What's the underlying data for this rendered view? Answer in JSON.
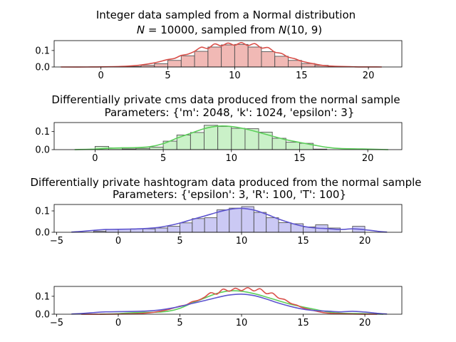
{
  "chart_data": [
    {
      "type": "bar",
      "title": "Integer data sampled from a Normal distribution",
      "subtitle": "N = 10000, sampled from N(10, 9)",
      "subtitle_parts": [
        "N",
        " = 10000, sampled from ",
        "N",
        "(10, 9)"
      ],
      "xlim": [
        -3.5,
        22.5
      ],
      "ylim": [
        0,
        0.16
      ],
      "xticks": [
        "0",
        "5",
        "10",
        "15",
        "20"
      ],
      "yticks": [
        "0.0",
        "0.1"
      ],
      "color": "#e88a84",
      "line_color": "#d9504a",
      "bins": [
        0,
        1,
        2,
        3,
        4,
        5,
        6,
        7,
        8,
        9,
        10,
        11,
        12,
        13,
        14,
        15,
        16,
        17,
        18,
        19
      ],
      "values": [
        0.0,
        0.001,
        0.003,
        0.01,
        0.02,
        0.04,
        0.068,
        0.095,
        0.121,
        0.134,
        0.137,
        0.121,
        0.093,
        0.065,
        0.04,
        0.021,
        0.01,
        0.004,
        0.001,
        0.0
      ],
      "kde_x": [
        -3,
        -1,
        1,
        2,
        3,
        4,
        5,
        5.5,
        6,
        6.5,
        7,
        7.5,
        8,
        8.5,
        9,
        9.5,
        10,
        10.5,
        11,
        11.5,
        12,
        12.5,
        13,
        13.5,
        14,
        14.5,
        15,
        16,
        17,
        19,
        21
      ],
      "kde_y": [
        0.0,
        0.0,
        0.002,
        0.005,
        0.012,
        0.025,
        0.045,
        0.052,
        0.07,
        0.078,
        0.095,
        0.12,
        0.112,
        0.14,
        0.128,
        0.145,
        0.132,
        0.148,
        0.13,
        0.142,
        0.115,
        0.118,
        0.09,
        0.082,
        0.06,
        0.05,
        0.035,
        0.018,
        0.006,
        0.001,
        0.0
      ]
    },
    {
      "type": "bar",
      "title": "Differentially private cms data produced from the normal sample",
      "subtitle": "Parameters: {'m': 2048, 'k': 1024, 'epsilon': 3}",
      "xlim": [
        -3,
        22.5
      ],
      "ylim": [
        0,
        0.15
      ],
      "xticks": [
        "0",
        "5",
        "10",
        "15",
        "20"
      ],
      "yticks": [
        "0.0",
        "0.1"
      ],
      "color": "#a6e8a4",
      "line_color": "#5ccf5a",
      "bins": [
        0,
        1,
        2,
        3,
        4,
        5,
        6,
        7,
        8,
        9,
        10,
        11,
        12,
        13,
        14,
        15,
        16
      ],
      "values": [
        0.018,
        0.01,
        0.004,
        0.007,
        0.014,
        0.047,
        0.081,
        0.095,
        0.135,
        0.128,
        0.118,
        0.116,
        0.097,
        0.063,
        0.041,
        0.035,
        0.003
      ],
      "kde_x": [
        -1.5,
        0,
        1,
        2,
        3,
        4,
        5,
        6,
        7,
        8,
        9,
        10,
        11,
        12,
        13,
        14,
        15,
        16,
        17,
        18,
        20,
        21.5
      ],
      "kde_y": [
        0.0,
        0.003,
        0.008,
        0.01,
        0.011,
        0.016,
        0.033,
        0.063,
        0.09,
        0.116,
        0.13,
        0.128,
        0.115,
        0.096,
        0.075,
        0.055,
        0.04,
        0.026,
        0.013,
        0.006,
        0.003,
        0.0
      ]
    },
    {
      "type": "bar",
      "title": "Differentially private hashtogram data produced from the normal sample",
      "subtitle": "Parameters: {'epsilon': 3, 'R': 100, 'T': 100}",
      "xlim": [
        -5.2,
        23
      ],
      "ylim": [
        0,
        0.13
      ],
      "xticks": [
        "−5",
        "0",
        "5",
        "10",
        "15",
        "20"
      ],
      "yticks": [
        "0.0",
        "0.1"
      ],
      "color": "#a9a5ec",
      "line_color": "#5e55cf",
      "bins": [
        -2,
        -1,
        0,
        1,
        2,
        3,
        4,
        5,
        6,
        7,
        8,
        9,
        10,
        11,
        12,
        13,
        14,
        15,
        16,
        17,
        18,
        19
      ],
      "values": [
        0.005,
        0.013,
        0.015,
        0.016,
        0.016,
        0.02,
        0.028,
        0.044,
        0.064,
        0.068,
        0.105,
        0.113,
        0.12,
        0.093,
        0.068,
        0.045,
        0.04,
        0.025,
        0.035,
        0.02,
        0.0,
        0.028
      ],
      "kde_x": [
        -3.8,
        -3,
        -2,
        -1,
        0,
        1,
        2,
        3,
        4,
        5,
        6,
        7,
        8,
        9,
        10,
        11,
        12,
        13,
        14,
        15,
        16,
        17,
        18,
        19,
        20,
        21,
        21.8
      ],
      "kde_y": [
        0.001,
        0.004,
        0.009,
        0.013,
        0.014,
        0.015,
        0.017,
        0.021,
        0.03,
        0.043,
        0.06,
        0.076,
        0.093,
        0.107,
        0.112,
        0.104,
        0.085,
        0.062,
        0.043,
        0.028,
        0.02,
        0.017,
        0.013,
        0.016,
        0.012,
        0.005,
        0.001
      ]
    },
    {
      "type": "line",
      "title": "",
      "xlim": [
        -5.2,
        23
      ],
      "ylim": [
        0,
        0.155
      ],
      "xticks": [
        "−5",
        "0",
        "5",
        "10",
        "15",
        "20"
      ],
      "yticks": [
        "0.0",
        "0.1"
      ],
      "series": [
        {
          "color": "#5ccf5a",
          "x": [
            -1.5,
            0,
            1,
            2,
            3,
            4,
            5,
            6,
            7,
            8,
            9,
            10,
            11,
            12,
            13,
            14,
            15,
            16,
            17,
            18,
            20,
            21.5
          ],
          "y": [
            0.0,
            0.003,
            0.008,
            0.01,
            0.011,
            0.016,
            0.033,
            0.063,
            0.09,
            0.116,
            0.13,
            0.128,
            0.115,
            0.096,
            0.075,
            0.055,
            0.04,
            0.026,
            0.013,
            0.006,
            0.003,
            0.0
          ]
        },
        {
          "color": "#d9504a",
          "x": [
            -3,
            -1,
            1,
            2,
            3,
            4,
            5,
            5.5,
            6,
            6.5,
            7,
            7.5,
            8,
            8.5,
            9,
            9.5,
            10,
            10.5,
            11,
            11.5,
            12,
            12.5,
            13,
            13.5,
            14,
            14.5,
            15,
            16,
            17,
            19,
            21
          ],
          "y": [
            0.0,
            0.0,
            0.002,
            0.005,
            0.012,
            0.025,
            0.045,
            0.052,
            0.07,
            0.078,
            0.095,
            0.12,
            0.112,
            0.14,
            0.128,
            0.145,
            0.132,
            0.148,
            0.13,
            0.142,
            0.115,
            0.118,
            0.09,
            0.082,
            0.06,
            0.05,
            0.035,
            0.018,
            0.006,
            0.001,
            0.0
          ]
        },
        {
          "color": "#5e55cf",
          "x": [
            -3.8,
            -3,
            -2,
            -1,
            0,
            1,
            2,
            3,
            4,
            5,
            6,
            7,
            8,
            9,
            10,
            11,
            12,
            13,
            14,
            15,
            16,
            17,
            18,
            19,
            20,
            21,
            21.8
          ],
          "y": [
            0.001,
            0.004,
            0.009,
            0.013,
            0.014,
            0.015,
            0.017,
            0.021,
            0.03,
            0.043,
            0.06,
            0.076,
            0.093,
            0.107,
            0.112,
            0.104,
            0.085,
            0.062,
            0.043,
            0.028,
            0.02,
            0.017,
            0.013,
            0.016,
            0.012,
            0.005,
            0.001
          ]
        }
      ]
    }
  ]
}
